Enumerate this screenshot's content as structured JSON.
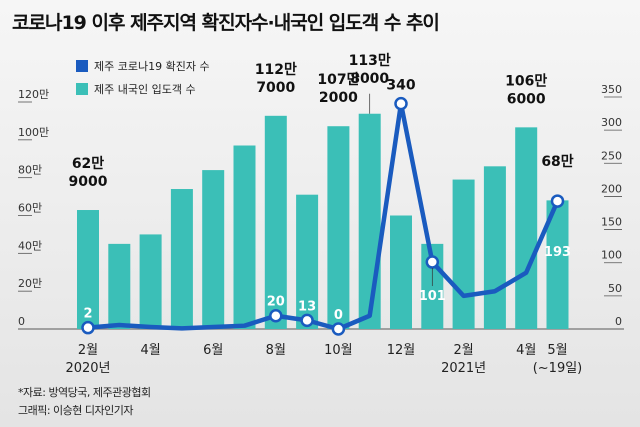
{
  "title": "코로나19 이후 제주지역 확진자수·내국인 입도객 수 추이",
  "notes": [
    "*자료: 방역당국, 제주관광협회",
    "그래픽: 이승현 디자인기자"
  ],
  "chart_data": {
    "type": "bar+line",
    "categories": [
      "2020-02",
      "2020-03",
      "2020-04",
      "2020-05",
      "2020-06",
      "2020-07",
      "2020-08",
      "2020-09",
      "2020-10",
      "2020-11",
      "2020-12",
      "2021-01",
      "2021-02",
      "2021-03",
      "2021-04",
      "2021-05"
    ],
    "x_tick_labels": [
      {
        "i": 0,
        "label": "2월",
        "sub": "2020년"
      },
      {
        "i": 2,
        "label": "4월"
      },
      {
        "i": 4,
        "label": "6월"
      },
      {
        "i": 6,
        "label": "8월"
      },
      {
        "i": 8,
        "label": "10월"
      },
      {
        "i": 10,
        "label": "12월"
      },
      {
        "i": 12,
        "label": "2월",
        "sub": "2021년"
      },
      {
        "i": 14,
        "label": "4월"
      },
      {
        "i": 15,
        "label": "5월",
        "sub": "(~19일)"
      }
    ],
    "legend": [
      {
        "name": "제주 코로나19 확진자 수",
        "color": "#1a5bbf"
      },
      {
        "name": "제주 내국인 입도객 수",
        "color": "#3bbfb7"
      }
    ],
    "left_axis": {
      "unit": "만",
      "ylim": [
        0,
        120
      ],
      "ticks": [
        "0",
        "20만",
        "40만",
        "60만",
        "80만",
        "100만",
        "120만"
      ]
    },
    "right_axis": {
      "ylim": [
        0,
        350
      ],
      "ticks": [
        "0",
        "50",
        "100",
        "150",
        "200",
        "250",
        "300",
        "350"
      ]
    },
    "series": [
      {
        "name": "제주 내국인 입도객 수",
        "type": "bar",
        "axis": "left",
        "color": "#3bbfb7",
        "values": [
          62.9,
          45,
          50,
          74,
          84,
          97,
          112.7,
          71,
          107.2,
          113.8,
          60,
          45,
          79,
          86,
          106.6,
          68
        ],
        "labels": {
          "0": [
            "62만",
            "9000"
          ],
          "6": [
            "112만",
            "7000"
          ],
          "8": [
            "107만",
            "2000"
          ],
          "9": [
            "113만",
            "8000"
          ],
          "14": [
            "106만",
            "6000"
          ],
          "15": [
            "68만"
          ]
        }
      },
      {
        "name": "제주 코로나19 확진자 수",
        "type": "line",
        "axis": "right",
        "color": "#1a5bbf",
        "values": [
          2,
          6,
          3,
          1,
          3,
          5,
          20,
          13,
          0,
          20,
          340,
          101,
          50,
          57,
          85,
          193
        ],
        "labels": {
          "0": "2",
          "6": "20",
          "7": "13",
          "8": "0",
          "10": "340",
          "11": "101",
          "15": "193"
        }
      }
    ]
  }
}
